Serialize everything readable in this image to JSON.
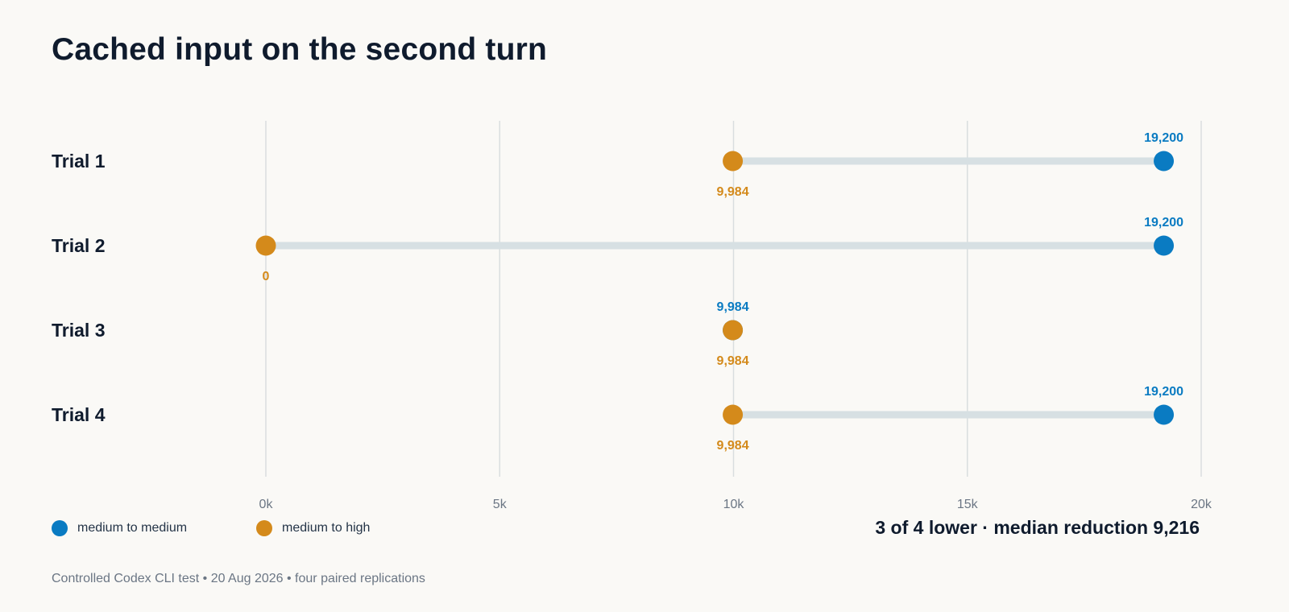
{
  "title": "Cached input on the second turn",
  "summary": "3 of 4 lower · median reduction 9,216",
  "footer": "Controlled Codex CLI test • 20 Aug 2026 • four paired replications",
  "legend": [
    {
      "label": "medium to medium",
      "color": "#0a7bc2"
    },
    {
      "label": "medium to high",
      "color": "#d48a1b"
    }
  ],
  "chart_data": {
    "type": "dumbbell",
    "categories": [
      "Trial 1",
      "Trial 2",
      "Trial 3",
      "Trial 4"
    ],
    "series": [
      {
        "name": "medium to medium",
        "color": "#0a7bc2",
        "values": [
          19200,
          19200,
          9984,
          19200
        ],
        "labels": [
          "19,200",
          "19,200",
          "9,984",
          "19,200"
        ]
      },
      {
        "name": "medium to high",
        "color": "#d48a1b",
        "values": [
          9984,
          0,
          9984,
          9984
        ],
        "labels": [
          "9,984",
          "0",
          "9,984",
          "9,984"
        ]
      }
    ],
    "xlim": [
      0,
      20000
    ],
    "xticks": [
      0,
      5000,
      10000,
      15000,
      20000
    ],
    "xtick_labels": [
      "0k",
      "5k",
      "10k",
      "15k",
      "20k"
    ],
    "grid": true,
    "legend_position": "bottom-left"
  }
}
